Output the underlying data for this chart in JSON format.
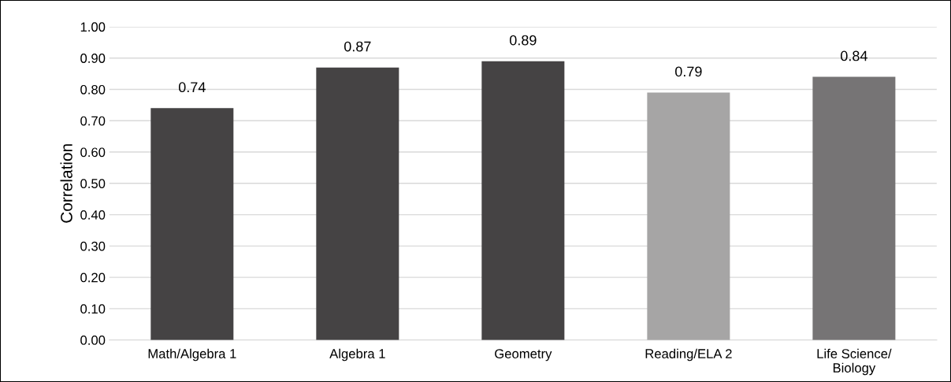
{
  "chart_data": {
    "type": "bar",
    "ylabel": "Correlation",
    "categories": [
      "Math/Algebra 1",
      "Algebra 1",
      "Geometry",
      "Reading/ELA 2",
      "Life Science/\nBiology"
    ],
    "values": [
      0.74,
      0.87,
      0.89,
      0.79,
      0.84
    ],
    "colors": [
      "#454344",
      "#454344",
      "#454344",
      "#a6a5a5",
      "#767475"
    ],
    "ylim": [
      0,
      1
    ],
    "yticks": [
      {
        "value": 0,
        "label": "0.00"
      },
      {
        "value": 0.1,
        "label": "0.10"
      },
      {
        "value": 0.2,
        "label": "0.20"
      },
      {
        "value": 0.3,
        "label": "0.30"
      },
      {
        "value": 0.4,
        "label": "0.40"
      },
      {
        "value": 0.5,
        "label": "0.50"
      },
      {
        "value": 0.6,
        "label": "0.60"
      },
      {
        "value": 0.7,
        "label": "0.70"
      },
      {
        "value": 0.8,
        "label": "0.80"
      },
      {
        "value": 0.9,
        "label": "0.90"
      },
      {
        "value": 1,
        "label": "1.00"
      }
    ],
    "grid": "y",
    "data_labels": true
  }
}
